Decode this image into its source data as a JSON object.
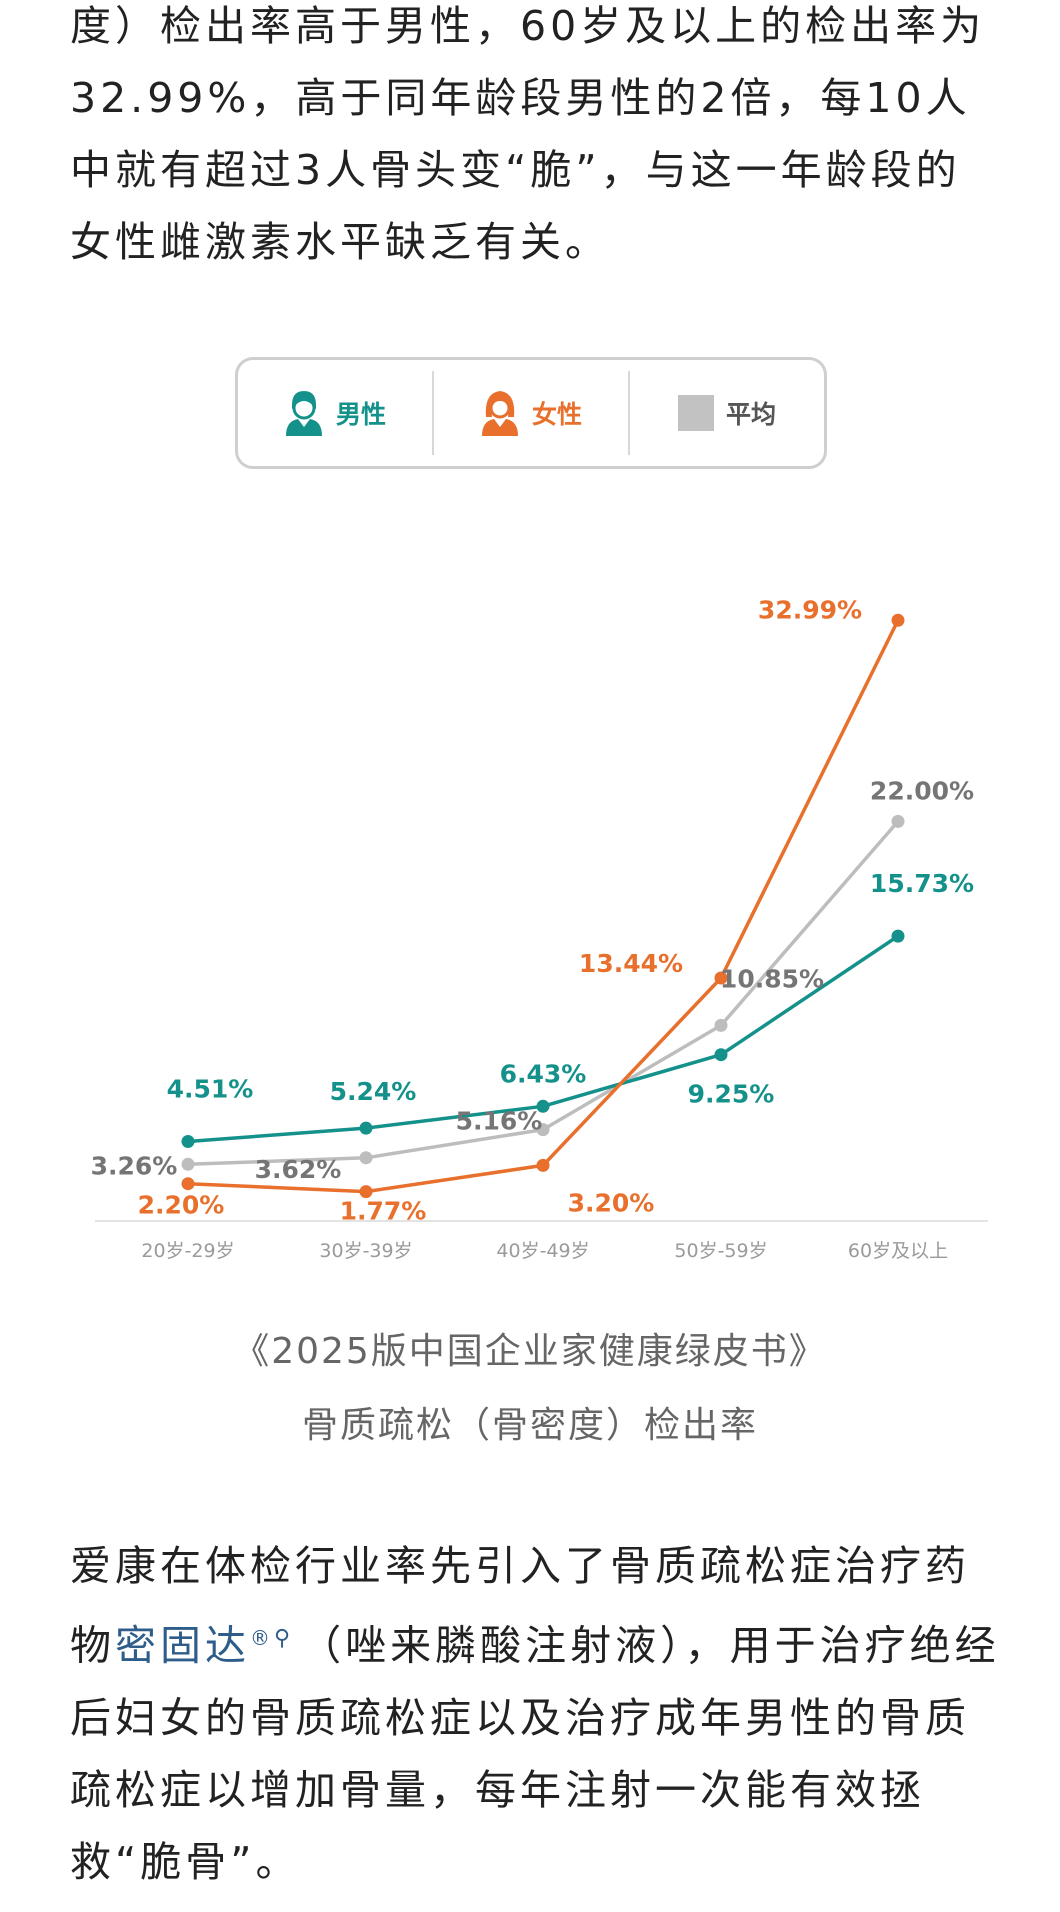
{
  "intro_paragraph": "度）检出率高于男性，60岁及以上的检出率为32.99%，高于同年龄段男性的2倍，每10人中就有超过3人骨头变“脆”，与这一年龄段的女性雌激素水平缺乏有关。",
  "legend": {
    "male": "男性",
    "female": "女性",
    "average": "平均"
  },
  "colors": {
    "male": "#14918a",
    "female": "#e8702c",
    "average": "#bdbdbd",
    "average_label": "#757575"
  },
  "chart_data": {
    "type": "line",
    "categories": [
      "20岁-29岁",
      "30岁-39岁",
      "40岁-49岁",
      "50岁-59岁",
      "60岁及以上"
    ],
    "series": [
      {
        "name": "男性",
        "key": "male",
        "values": [
          4.51,
          5.24,
          6.43,
          9.25,
          15.73
        ],
        "labels": [
          "4.51%",
          "5.24%",
          "6.43%",
          "9.25%",
          "15.73%"
        ]
      },
      {
        "name": "女性",
        "key": "female",
        "values": [
          2.2,
          1.77,
          3.2,
          13.44,
          32.99
        ],
        "labels": [
          "2.20%",
          "1.77%",
          "3.20%",
          "13.44%",
          "32.99%"
        ]
      },
      {
        "name": "平均",
        "key": "average",
        "values": [
          3.26,
          3.62,
          5.16,
          10.85,
          22.0
        ],
        "labels": [
          "3.26%",
          "3.62%",
          "5.16%",
          "10.85%",
          "22.00%"
        ]
      }
    ],
    "ylim": [
      0,
      35
    ],
    "grid": false,
    "legend_position": "top"
  },
  "caption": {
    "line1": "《2025版中国企业家健康绿皮书》",
    "line2": "骨质疏松（骨密度）检出率"
  },
  "outro": {
    "before": "爱康在体检行业率先引入了骨质疏松症治疗药物",
    "drug_name": "密固达",
    "registered": "®",
    "after": "（唑来膦酸注射液），用于治疗绝经后妇女的骨质疏松症以及治疗成年男性的骨质疏松症以增加骨量，每年注射一次能有效拯救“脆骨”。"
  }
}
